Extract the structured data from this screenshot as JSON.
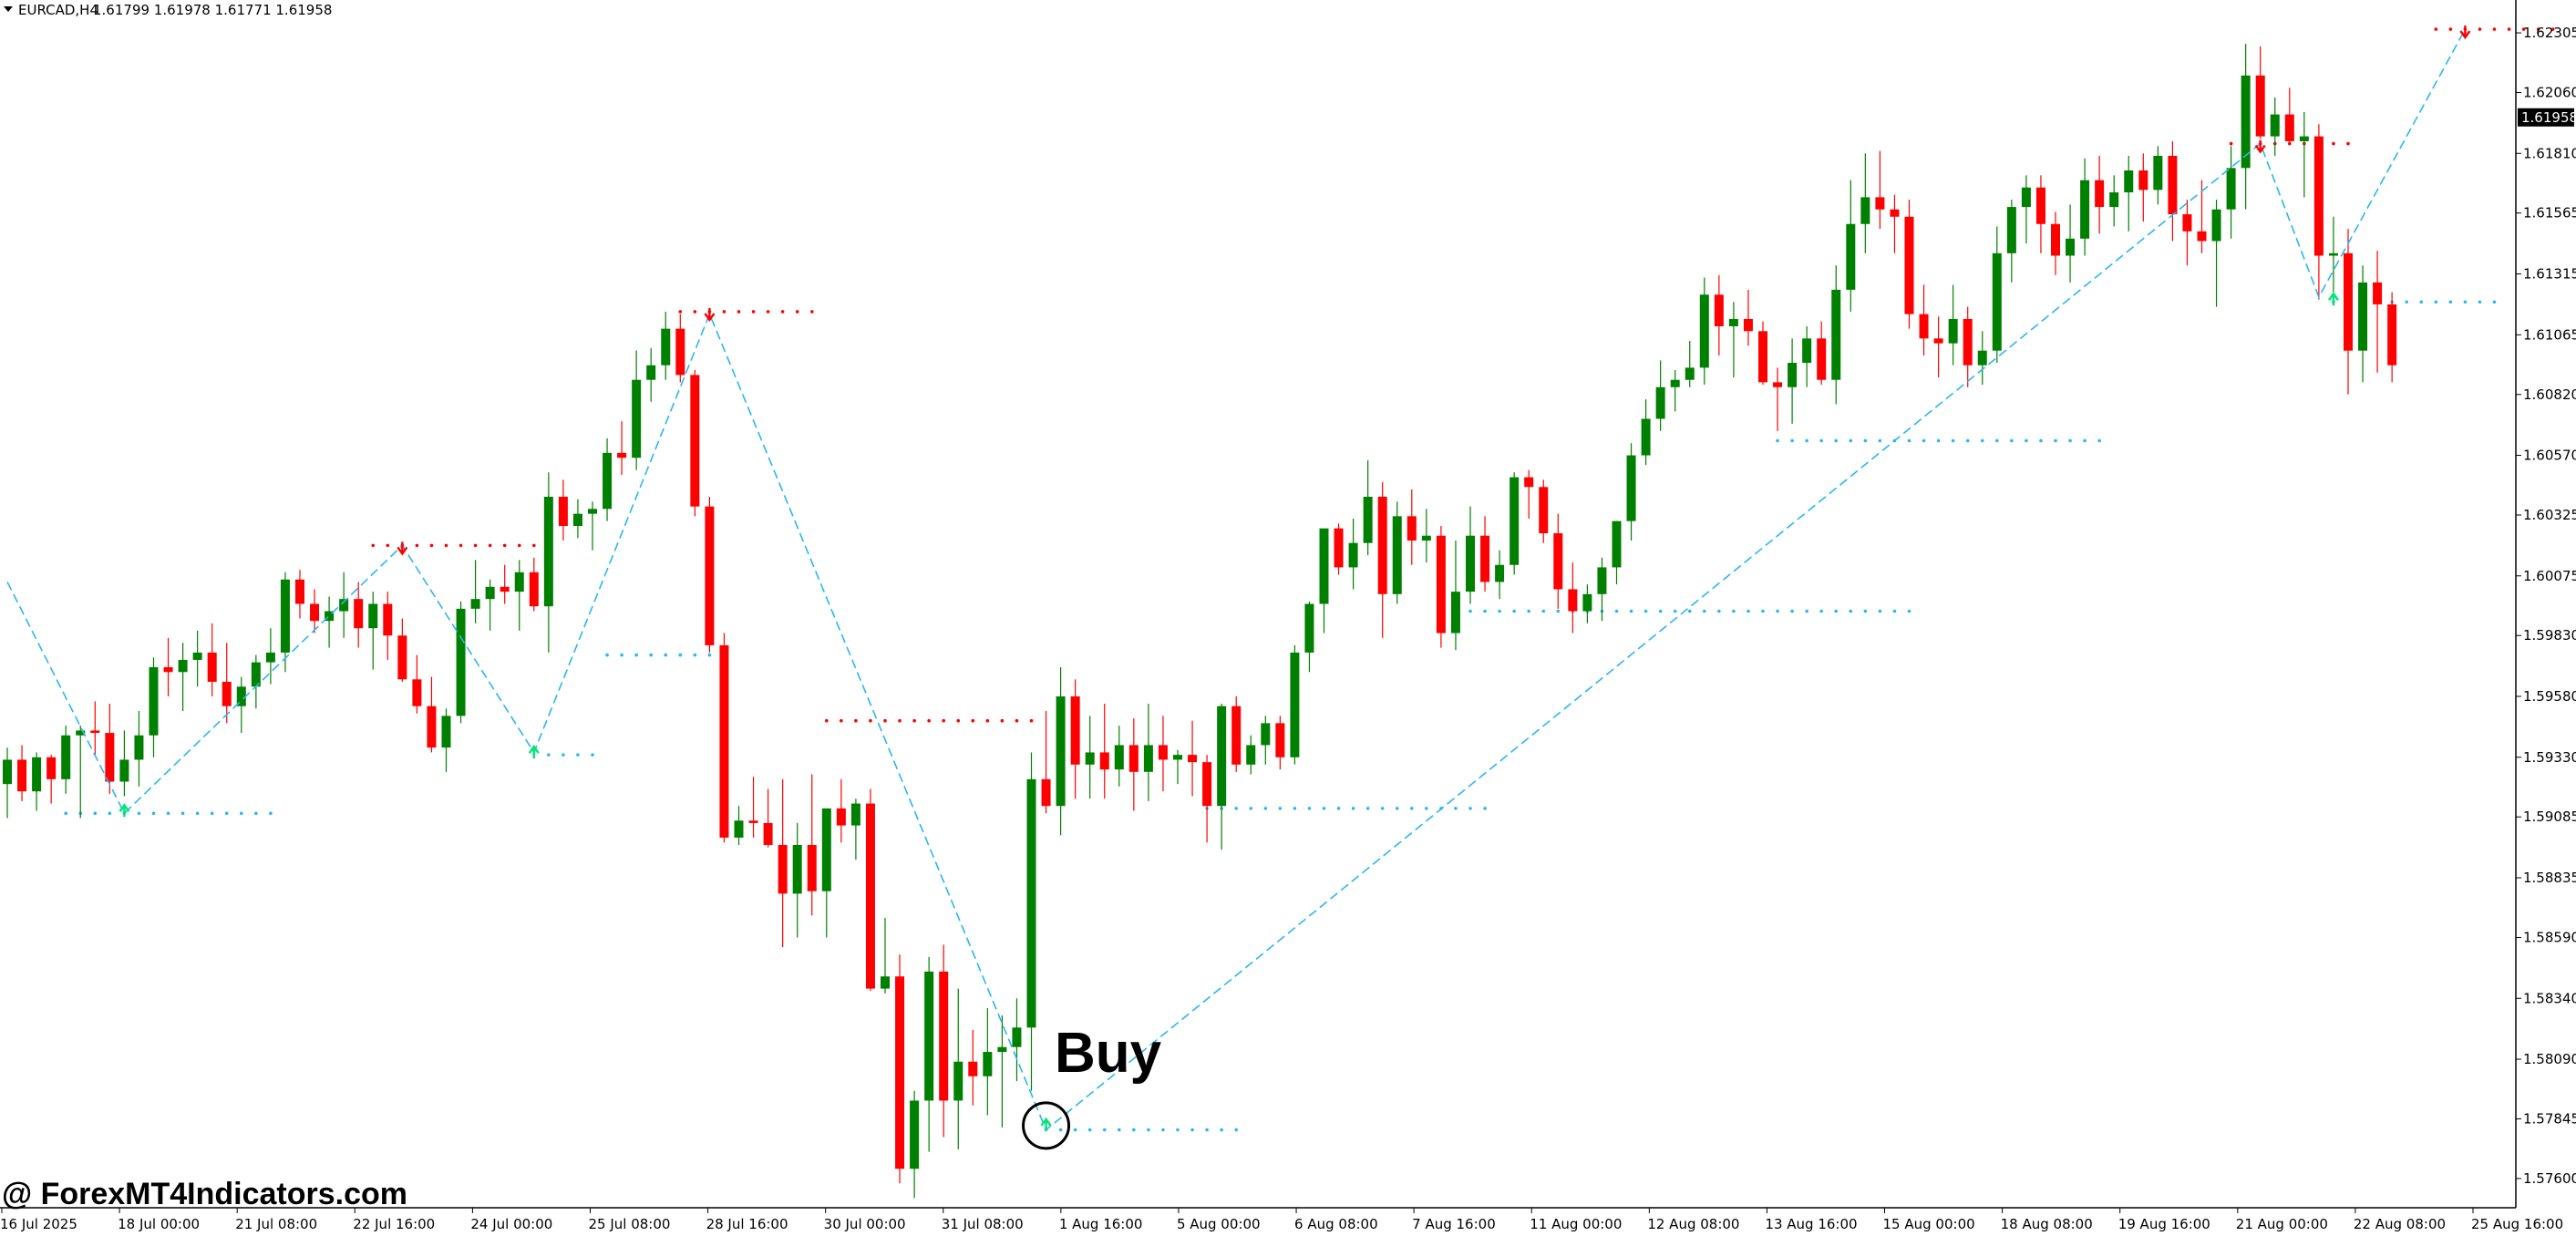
{
  "header": {
    "symbol": "EURCAD,H4",
    "ohlc": "1.61799 1.61978 1.61771 1.61958"
  },
  "annotation": {
    "label": "Buy"
  },
  "watermark": {
    "text": "@ ForexMT4Indicators.com"
  },
  "colors": {
    "bull": "#008000",
    "bear": "#ff0000",
    "zigzag": "#29b6f6",
    "up_arrow": "#00e676",
    "down_arrow": "#ff0000",
    "background": "#ffffff",
    "price_tag_bg": "#000000",
    "price_tag_text": "#ffffff"
  },
  "chart_data": {
    "type": "candlestick",
    "timeframe": "H4",
    "current_price": "1.61958",
    "ylim": [
      1.5748,
      1.6244
    ],
    "y_ticks": [
      "1.62305",
      "1.62060",
      "1.61810",
      "1.61565",
      "1.61315",
      "1.61065",
      "1.60820",
      "1.60570",
      "1.60325",
      "1.60075",
      "1.59830",
      "1.59580",
      "1.59330",
      "1.59085",
      "1.58835",
      "1.58590",
      "1.58340",
      "1.58090",
      "1.57845",
      "1.57600"
    ],
    "x_ticks": [
      "16 Jul 2025",
      "18 Jul 00:00",
      "21 Jul 08:00",
      "22 Jul 16:00",
      "24 Jul 00:00",
      "25 Jul 08:00",
      "28 Jul 16:00",
      "30 Jul 00:00",
      "31 Jul 08:00",
      "1 Aug 16:00",
      "5 Aug 00:00",
      "6 Aug 08:00",
      "7 Aug 16:00",
      "11 Aug 00:00",
      "12 Aug 08:00",
      "13 Aug 16:00",
      "15 Aug 00:00",
      "18 Aug 08:00",
      "19 Aug 16:00",
      "21 Aug 00:00",
      "22 Aug 08:00",
      "25 Aug 16:00"
    ],
    "candles": [
      [
        1.5922,
        1.5937,
        1.5908,
        1.5932
      ],
      [
        1.5932,
        1.5938,
        1.5915,
        1.5919
      ],
      [
        1.5919,
        1.5935,
        1.5911,
        1.5933
      ],
      [
        1.5933,
        1.5934,
        1.5914,
        1.5924
      ],
      [
        1.5924,
        1.5946,
        1.5918,
        1.5942
      ],
      [
        1.5942,
        1.5946,
        1.5908,
        1.5944
      ],
      [
        1.5944,
        1.5956,
        1.5934,
        1.5943
      ],
      [
        1.5943,
        1.5955,
        1.5918,
        1.5923
      ],
      [
        1.5923,
        1.5944,
        1.5917,
        1.5932
      ],
      [
        1.5932,
        1.5952,
        1.5921,
        1.5942
      ],
      [
        1.5942,
        1.5974,
        1.5933,
        1.597
      ],
      [
        1.597,
        1.5982,
        1.5958,
        1.5968
      ],
      [
        1.5968,
        1.598,
        1.5952,
        1.5973
      ],
      [
        1.5973,
        1.5985,
        1.5962,
        1.5976
      ],
      [
        1.5976,
        1.5988,
        1.5958,
        1.5964
      ],
      [
        1.5964,
        1.598,
        1.5947,
        1.5954
      ],
      [
        1.5954,
        1.5966,
        1.5943,
        1.5962
      ],
      [
        1.5962,
        1.5975,
        1.5953,
        1.5972
      ],
      [
        1.5972,
        1.5986,
        1.5963,
        1.5976
      ],
      [
        1.5976,
        1.6009,
        1.5968,
        1.6006
      ],
      [
        1.6006,
        1.601,
        1.599,
        1.5996
      ],
      [
        1.5996,
        1.6002,
        1.5984,
        1.5989
      ],
      [
        1.5989,
        1.5999,
        1.5978,
        1.5993
      ],
      [
        1.5993,
        1.6009,
        1.5982,
        1.5998
      ],
      [
        1.5998,
        1.6005,
        1.5978,
        1.5986
      ],
      [
        1.5986,
        1.6001,
        1.5969,
        1.5996
      ],
      [
        1.5996,
        1.6001,
        1.5973,
        1.5983
      ],
      [
        1.5983,
        1.599,
        1.5964,
        1.5965
      ],
      [
        1.5965,
        1.5975,
        1.5951,
        1.5954
      ],
      [
        1.5954,
        1.5966,
        1.5935,
        1.5937
      ],
      [
        1.5937,
        1.5953,
        1.5927,
        1.595
      ],
      [
        1.595,
        1.5997,
        1.5947,
        1.5994
      ],
      [
        1.5994,
        1.6014,
        1.5988,
        1.5998
      ],
      [
        1.5998,
        1.6006,
        1.5985,
        1.6003
      ],
      [
        1.6003,
        1.6012,
        1.5996,
        1.6001
      ],
      [
        1.6001,
        1.6014,
        1.5985,
        1.6009
      ],
      [
        1.6009,
        1.6015,
        1.5993,
        1.5995
      ],
      [
        1.5995,
        1.605,
        1.5976,
        1.604
      ],
      [
        1.604,
        1.6047,
        1.6022,
        1.6028
      ],
      [
        1.6028,
        1.6039,
        1.6023,
        1.6033
      ],
      [
        1.6033,
        1.6038,
        1.6018,
        1.6035
      ],
      [
        1.6035,
        1.6064,
        1.603,
        1.6058
      ],
      [
        1.6058,
        1.6071,
        1.6049,
        1.6056
      ],
      [
        1.6056,
        1.61,
        1.6051,
        1.6088
      ],
      [
        1.6088,
        1.6101,
        1.6079,
        1.6094
      ],
      [
        1.6094,
        1.6116,
        1.6088,
        1.6109
      ],
      [
        1.6109,
        1.6115,
        1.6087,
        1.609
      ],
      [
        1.609,
        1.6092,
        1.6032,
        1.6036
      ],
      [
        1.6036,
        1.604,
        1.5976,
        1.5979
      ],
      [
        1.5979,
        1.5984,
        1.5898,
        1.59
      ],
      [
        1.59,
        1.5913,
        1.5897,
        1.5907
      ],
      [
        1.5907,
        1.5925,
        1.59,
        1.5906
      ],
      [
        1.5906,
        1.592,
        1.5896,
        1.5897
      ],
      [
        1.5897,
        1.5924,
        1.5855,
        1.5877
      ],
      [
        1.5877,
        1.5906,
        1.5859,
        1.5897
      ],
      [
        1.5897,
        1.5926,
        1.5868,
        1.5878
      ],
      [
        1.5878,
        1.5909,
        1.5859,
        1.5912
      ],
      [
        1.5912,
        1.5924,
        1.5898,
        1.5905
      ],
      [
        1.5905,
        1.5916,
        1.5891,
        1.5914
      ],
      [
        1.5914,
        1.592,
        1.5837,
        1.5838
      ],
      [
        1.5838,
        1.5867,
        1.5836,
        1.5843
      ],
      [
        1.5843,
        1.5852,
        1.5758,
        1.5764
      ],
      [
        1.5764,
        1.5796,
        1.5752,
        1.5792
      ],
      [
        1.5792,
        1.5851,
        1.5771,
        1.5845
      ],
      [
        1.5845,
        1.5856,
        1.5777,
        1.5792
      ],
      [
        1.5792,
        1.5838,
        1.5772,
        1.5808
      ],
      [
        1.5808,
        1.5821,
        1.579,
        1.5802
      ],
      [
        1.5802,
        1.583,
        1.5786,
        1.5812
      ],
      [
        1.5812,
        1.5827,
        1.5781,
        1.5814
      ],
      [
        1.5814,
        1.5834,
        1.58,
        1.5822
      ],
      [
        1.5822,
        1.5935,
        1.5796,
        1.5924
      ],
      [
        1.5924,
        1.5952,
        1.591,
        1.5913
      ],
      [
        1.5913,
        1.597,
        1.5901,
        1.5958
      ],
      [
        1.5958,
        1.5965,
        1.5916,
        1.593
      ],
      [
        1.593,
        1.595,
        1.5916,
        1.5935
      ],
      [
        1.5935,
        1.5955,
        1.5916,
        1.5928
      ],
      [
        1.5928,
        1.5946,
        1.5921,
        1.5938
      ],
      [
        1.5938,
        1.5949,
        1.5911,
        1.5927
      ],
      [
        1.5927,
        1.5955,
        1.5915,
        1.5938
      ],
      [
        1.5938,
        1.595,
        1.5919,
        1.5932
      ],
      [
        1.5932,
        1.5936,
        1.5922,
        1.5934
      ],
      [
        1.5934,
        1.5948,
        1.5917,
        1.5931
      ],
      [
        1.5931,
        1.5934,
        1.5898,
        1.5913
      ],
      [
        1.5913,
        1.5955,
        1.5895,
        1.5954
      ],
      [
        1.5954,
        1.5958,
        1.5927,
        1.593
      ],
      [
        1.593,
        1.5942,
        1.5926,
        1.5938
      ],
      [
        1.5938,
        1.595,
        1.593,
        1.5947
      ],
      [
        1.5947,
        1.595,
        1.5928,
        1.5933
      ],
      [
        1.5933,
        1.5979,
        1.593,
        1.5976
      ],
      [
        1.5976,
        1.5997,
        1.5968,
        1.5996
      ],
      [
        1.5996,
        1.6025,
        1.5984,
        1.6027
      ],
      [
        1.6027,
        1.6029,
        1.6008,
        1.6011
      ],
      [
        1.6011,
        1.6031,
        1.6002,
        1.6021
      ],
      [
        1.6021,
        1.6055,
        1.6016,
        1.604
      ],
      [
        1.604,
        1.6046,
        1.5982,
        1.6
      ],
      [
        1.6,
        1.6038,
        1.5996,
        1.6032
      ],
      [
        1.6032,
        1.6043,
        1.6012,
        1.6022
      ],
      [
        1.6022,
        1.6035,
        1.6013,
        1.6024
      ],
      [
        1.6024,
        1.6028,
        1.5978,
        1.5984
      ],
      [
        1.5984,
        1.6022,
        1.5977,
        1.6001
      ],
      [
        1.6001,
        1.6036,
        1.5996,
        1.6024
      ],
      [
        1.6024,
        1.6032,
        1.6001,
        1.6005
      ],
      [
        1.6005,
        1.6018,
        1.5998,
        1.6012
      ],
      [
        1.6012,
        1.605,
        1.6008,
        1.6048
      ],
      [
        1.6048,
        1.6051,
        1.6031,
        1.6044
      ],
      [
        1.6044,
        1.6047,
        1.6021,
        1.6025
      ],
      [
        1.6025,
        1.6033,
        1.5994,
        1.6002
      ],
      [
        1.6002,
        1.6013,
        1.5984,
        1.5993
      ],
      [
        1.5993,
        1.6004,
        1.5988,
        1.6
      ],
      [
        1.6,
        1.6015,
        1.5989,
        1.6011
      ],
      [
        1.6011,
        1.603,
        1.6004,
        1.603
      ],
      [
        1.603,
        1.6062,
        1.6022,
        1.6057
      ],
      [
        1.6057,
        1.608,
        1.6053,
        1.6072
      ],
      [
        1.6072,
        1.6096,
        1.6067,
        1.6085
      ],
      [
        1.6085,
        1.6092,
        1.6075,
        1.6088
      ],
      [
        1.6088,
        1.6104,
        1.6085,
        1.6093
      ],
      [
        1.6093,
        1.613,
        1.6086,
        1.6123
      ],
      [
        1.6123,
        1.6131,
        1.6098,
        1.611
      ],
      [
        1.611,
        1.612,
        1.6089,
        1.6113
      ],
      [
        1.6113,
        1.6125,
        1.6102,
        1.6108
      ],
      [
        1.6108,
        1.6112,
        1.6086,
        1.6087
      ],
      [
        1.6087,
        1.6093,
        1.6067,
        1.6085
      ],
      [
        1.6085,
        1.6105,
        1.607,
        1.6095
      ],
      [
        1.6095,
        1.611,
        1.6085,
        1.6105
      ],
      [
        1.6105,
        1.6112,
        1.6086,
        1.6088
      ],
      [
        1.6088,
        1.6135,
        1.6078,
        1.6125
      ],
      [
        1.6125,
        1.617,
        1.6116,
        1.6152
      ],
      [
        1.6152,
        1.6181,
        1.614,
        1.6163
      ],
      [
        1.6163,
        1.6182,
        1.615,
        1.6158
      ],
      [
        1.6158,
        1.6164,
        1.614,
        1.6155
      ],
      [
        1.6155,
        1.6162,
        1.6109,
        1.6115
      ],
      [
        1.6115,
        1.6127,
        1.6098,
        1.6105
      ],
      [
        1.6105,
        1.6114,
        1.6089,
        1.6103
      ],
      [
        1.6103,
        1.6127,
        1.6094,
        1.6113
      ],
      [
        1.6113,
        1.6118,
        1.6085,
        1.6094
      ],
      [
        1.6094,
        1.6108,
        1.6086,
        1.61
      ],
      [
        1.61,
        1.6151,
        1.6095,
        1.614
      ],
      [
        1.614,
        1.6162,
        1.6128,
        1.6159
      ],
      [
        1.6159,
        1.6172,
        1.6144,
        1.6167
      ],
      [
        1.6167,
        1.6172,
        1.614,
        1.6152
      ],
      [
        1.6152,
        1.6157,
        1.6131,
        1.6139
      ],
      [
        1.6139,
        1.616,
        1.6128,
        1.6146
      ],
      [
        1.6146,
        1.6179,
        1.6139,
        1.617
      ],
      [
        1.617,
        1.618,
        1.6148,
        1.6159
      ],
      [
        1.6159,
        1.6172,
        1.6151,
        1.6165
      ],
      [
        1.6165,
        1.618,
        1.6149,
        1.6174
      ],
      [
        1.6174,
        1.6181,
        1.6153,
        1.6166
      ],
      [
        1.6166,
        1.6184,
        1.616,
        1.618
      ],
      [
        1.618,
        1.6186,
        1.6145,
        1.6156
      ],
      [
        1.6156,
        1.6162,
        1.6135,
        1.6149
      ],
      [
        1.6149,
        1.617,
        1.614,
        1.6145
      ],
      [
        1.6145,
        1.6162,
        1.6118,
        1.6158
      ],
      [
        1.6158,
        1.6184,
        1.6146,
        1.6175
      ],
      [
        1.6175,
        1.6226,
        1.6158,
        1.6213
      ],
      [
        1.6213,
        1.6225,
        1.6187,
        1.6188
      ],
      [
        1.6188,
        1.6204,
        1.618,
        1.6197
      ],
      [
        1.6197,
        1.6208,
        1.6185,
        1.6186
      ],
      [
        1.6186,
        1.6198,
        1.6163,
        1.6188
      ],
      [
        1.6188,
        1.6193,
        1.6121,
        1.6139
      ],
      [
        1.6139,
        1.6155,
        1.6124,
        1.614
      ],
      [
        1.614,
        1.615,
        1.6082,
        1.61
      ],
      [
        1.61,
        1.6135,
        1.6087,
        1.6128
      ],
      [
        1.6128,
        1.6141,
        1.6091,
        1.6119
      ],
      [
        1.6119,
        1.6124,
        1.6087,
        1.6094
      ]
    ],
    "zigzag_pivots": [
      [
        0,
        1.6005
      ],
      [
        8,
        1.591
      ],
      [
        27,
        1.602
      ],
      [
        36,
        1.5935
      ],
      [
        48,
        1.6115
      ],
      [
        71,
        1.578
      ],
      [
        154,
        1.6185
      ],
      [
        158,
        1.6122
      ],
      [
        168,
        1.6232
      ]
    ],
    "signals": [
      {
        "type": "buy",
        "index": 8,
        "price": 1.591
      },
      {
        "type": "buy",
        "index": 36,
        "price": 1.5934
      },
      {
        "type": "buy",
        "index": 71,
        "price": 1.5781
      },
      {
        "type": "buy",
        "index": 159,
        "price": 1.612
      },
      {
        "type": "sell",
        "index": 27,
        "price": 1.602
      },
      {
        "type": "sell",
        "index": 48,
        "price": 1.6116
      },
      {
        "type": "sell",
        "index": 154,
        "price": 1.6185
      },
      {
        "type": "sell",
        "index": 168,
        "price": 1.6232
      }
    ],
    "support_levels": [
      {
        "from": 4,
        "to": 18,
        "price": 1.591
      },
      {
        "from": 41,
        "to": 48,
        "price": 1.5975
      },
      {
        "from": 37,
        "to": 40,
        "price": 1.5934
      },
      {
        "from": 71,
        "to": 84,
        "price": 1.578
      },
      {
        "from": 82,
        "to": 101,
        "price": 1.5912
      },
      {
        "from": 100,
        "to": 130,
        "price": 1.5993
      },
      {
        "from": 121,
        "to": 143,
        "price": 1.6063
      },
      {
        "from": 159,
        "to": 170,
        "price": 1.612
      }
    ],
    "resistance_levels": [
      {
        "from": 25,
        "to": 36,
        "price": 1.602
      },
      {
        "from": 46,
        "to": 55,
        "price": 1.6116
      },
      {
        "from": 56,
        "to": 70,
        "price": 1.5948
      },
      {
        "from": 152,
        "to": 160,
        "price": 1.6185
      },
      {
        "from": 166,
        "to": 174,
        "price": 1.6232
      }
    ],
    "grid": false
  }
}
